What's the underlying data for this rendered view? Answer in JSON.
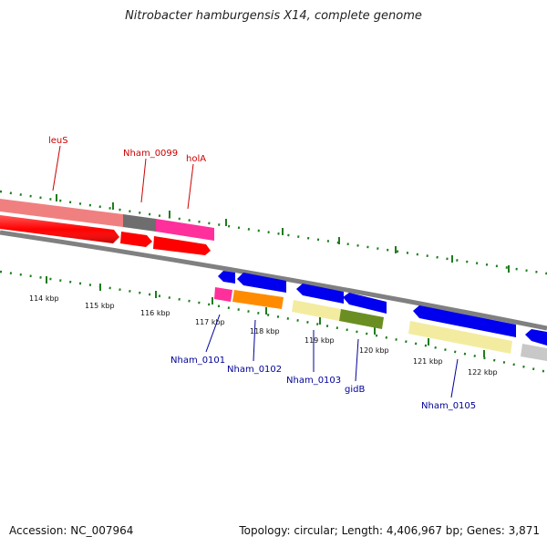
{
  "title": "Nitrobacter hamburgensis X14, complete genome",
  "footer": {
    "accession": "Accession: NC_007964",
    "summary": "Topology: circular; Length: 4,406,967 bp; Genes: 3,871"
  },
  "colors": {
    "red": "#ff0000",
    "pink": "#ff2f9b",
    "salmon": "#f08080",
    "dark_gray": "#6e6e6e",
    "blue": "#0000ee",
    "orange": "#ff8c00",
    "pale_yellow": "#f3eca0",
    "olive": "#6b8e23",
    "light_gray": "#c8c8c8",
    "tick_green": "#1e7d1e",
    "label_red": "#cc0000",
    "label_blue": "#000099"
  },
  "kbp_ticks": [
    "114 kbp",
    "115 kbp",
    "116 kbp",
    "117 kbp",
    "118 kbp",
    "119 kbp",
    "120 kbp",
    "121 kbp",
    "122 kbp"
  ],
  "top_gene_labels": [
    "leuS",
    "Nham_0099",
    "holA"
  ],
  "bottom_gene_labels": [
    "Nham_0101",
    "Nham_0102",
    "Nham_0103",
    "gidB",
    "Nham_0105"
  ]
}
